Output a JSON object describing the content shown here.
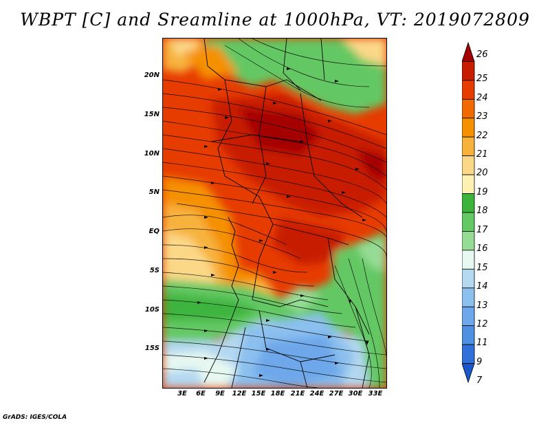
{
  "title": "WBPT [C] and Sreamline at 1000hPa, VT: 2019072809",
  "credit": "GrADS: IGES/COLA",
  "lat_ticks": [
    "20N",
    "15N",
    "10N",
    "5N",
    "EQ",
    "5S",
    "10S",
    "15S"
  ],
  "lon_ticks": [
    "3E",
    "6E",
    "9E",
    "12E",
    "15E",
    "18E",
    "21E",
    "24E",
    "27E",
    "30E",
    "33E"
  ],
  "colorbar": {
    "labels": [
      "26",
      "25",
      "24",
      "23",
      "22",
      "21",
      "20",
      "19",
      "18",
      "17",
      "16",
      "15",
      "14",
      "13",
      "12",
      "11",
      "9",
      "7"
    ],
    "colors": [
      "#a50000",
      "#c81e00",
      "#e63c00",
      "#f06a00",
      "#f59000",
      "#f7b23c",
      "#fbd888",
      "#fff0b4",
      "#3cb43c",
      "#64c864",
      "#96dc96",
      "#e6f8f0",
      "#b4d8f0",
      "#8cc0ee",
      "#6ea8ea",
      "#5090e0",
      "#3070d8",
      "#1858c8"
    ]
  },
  "map": {
    "variable": "Wet-bulb potential temperature (C)",
    "level": "1000hPa",
    "valid_time": "2019072809"
  }
}
